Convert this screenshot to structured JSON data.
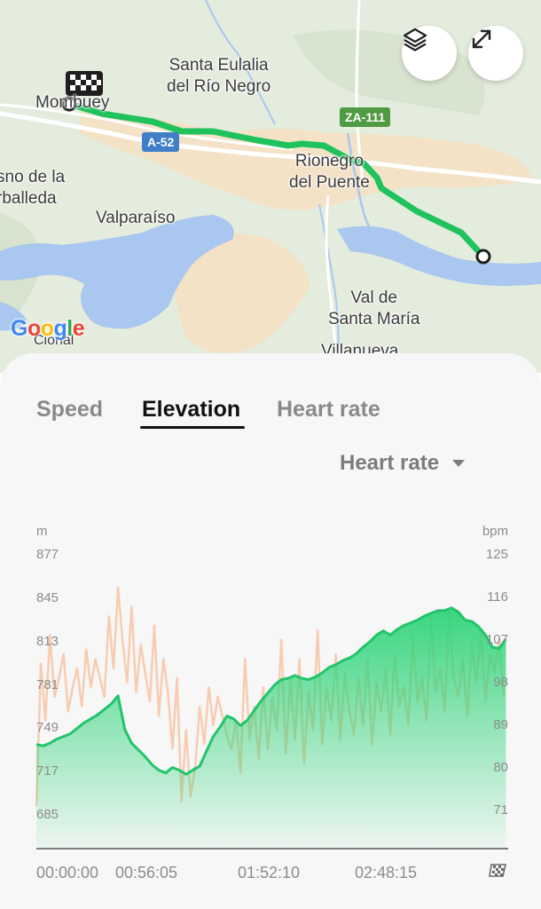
{
  "map": {
    "labels": {
      "santa_eulalia": "Santa Eulalia\ndel Río Negro",
      "mombuey": "Mombuey",
      "fresno": "sno de la\nrballeda",
      "valparaiso": "Valparaíso",
      "rionegro": "Rionegro\ndel Puente",
      "val_santa_maria": "Val de\nSanta María",
      "villanueva": "Villanueva",
      "cional": "Cional"
    },
    "roads": {
      "a52": "A-52",
      "za111": "ZA-111"
    },
    "google_logo": "Google",
    "layers_icon": "layers-icon",
    "expand_icon": "expand-icon",
    "route_color": "#1fc25c"
  },
  "tabs": [
    {
      "label": "Speed",
      "active": false
    },
    {
      "label": "Elevation",
      "active": true
    },
    {
      "label": "Heart rate",
      "active": false
    }
  ],
  "overlay_select": {
    "value": "Heart rate"
  },
  "chart_data": {
    "type": "area",
    "x_ticks": [
      "00:00:00",
      "00:56:05",
      "01:52:10",
      "02:48:15"
    ],
    "finish_icon": "checkered-flag-icon",
    "left_axis": {
      "unit": "m",
      "ticks": [
        "877",
        "845",
        "813",
        "781",
        "749",
        "717",
        "685"
      ],
      "range": [
        660,
        895
      ]
    },
    "right_axis": {
      "unit": "bpm",
      "ticks": [
        "125",
        "116",
        "107",
        "98",
        "89",
        "80",
        "71"
      ],
      "range": [
        63,
        130
      ]
    },
    "x_range_minutes": [
      0,
      208
    ],
    "series": [
      {
        "name": "Elevation",
        "color": "#2fd47a",
        "x": [
          0,
          3,
          6,
          9,
          12,
          15,
          18,
          21,
          24,
          27,
          30,
          33,
          36,
          39,
          42,
          45,
          48,
          51,
          54,
          57,
          60,
          63,
          66,
          69,
          72,
          75,
          78,
          81,
          84,
          87,
          90,
          93,
          96,
          99,
          102,
          105,
          108,
          111,
          114,
          117,
          120,
          123,
          126,
          129,
          132,
          135,
          138,
          141,
          144,
          147,
          150,
          153,
          156,
          159,
          162,
          165,
          168,
          171,
          174,
          177,
          180,
          183,
          186,
          189,
          192,
          195,
          198,
          201,
          204,
          207
        ],
        "values": [
          737,
          736,
          738,
          741,
          743,
          745,
          749,
          753,
          756,
          759,
          763,
          767,
          773,
          748,
          738,
          733,
          728,
          722,
          718,
          716,
          720,
          718,
          715,
          718,
          721,
          732,
          743,
          750,
          758,
          756,
          751,
          755,
          762,
          769,
          775,
          781,
          785,
          786,
          788,
          786,
          785,
          787,
          790,
          794,
          796,
          799,
          801,
          804,
          809,
          813,
          818,
          821,
          818,
          822,
          825,
          827,
          829,
          832,
          834,
          836,
          836,
          838,
          835,
          829,
          828,
          824,
          818,
          809,
          808,
          815
        ]
      },
      {
        "name": "Heart rate",
        "color": "#f7c6a8",
        "x": [
          0,
          2,
          4,
          6,
          8,
          10,
          12,
          14,
          16,
          18,
          20,
          22,
          24,
          26,
          28,
          30,
          32,
          34,
          36,
          38,
          40,
          42,
          44,
          46,
          48,
          50,
          52,
          54,
          56,
          58,
          60,
          62,
          64,
          66,
          68,
          70,
          72,
          74,
          76,
          78,
          80,
          82,
          84,
          86,
          88,
          90,
          92,
          94,
          96,
          98,
          100,
          102,
          104,
          106,
          108,
          110,
          112,
          114,
          116,
          118,
          120,
          122,
          124,
          126,
          128,
          130,
          132,
          134,
          136,
          138,
          140,
          142,
          144,
          146,
          148,
          150,
          152,
          154,
          156,
          158,
          160,
          162,
          164,
          166,
          168,
          170,
          172,
          174,
          176,
          178,
          180,
          182,
          184,
          186,
          188,
          190,
          192,
          194,
          196,
          198,
          200,
          202,
          204,
          206
        ],
        "values": [
          72,
          102,
          90,
          108,
          95,
          99,
          104,
          92,
          97,
          101,
          93,
          105,
          97,
          103,
          99,
          95,
          112,
          101,
          118,
          107,
          98,
          114,
          96,
          106,
          100,
          94,
          110,
          91,
          103,
          96,
          84,
          99,
          73,
          88,
          74,
          80,
          93,
          85,
          97,
          89,
          95,
          91,
          87,
          84,
          90,
          79,
          103,
          86,
          93,
          82,
          97,
          84,
          95,
          88,
          107,
          83,
          99,
          86,
          103,
          81,
          96,
          88,
          109,
          85,
          97,
          90,
          104,
          86,
          100,
          92,
          87,
          99,
          89,
          103,
          85,
          98,
          92,
          101,
          87,
          104,
          93,
          97,
          89,
          108,
          94,
          99,
          90,
          112,
          96,
          101,
          92,
          113,
          99,
          95,
          103,
          91,
          106,
          98,
          109,
          94,
          104,
          100,
          107,
          95
        ]
      }
    ]
  }
}
